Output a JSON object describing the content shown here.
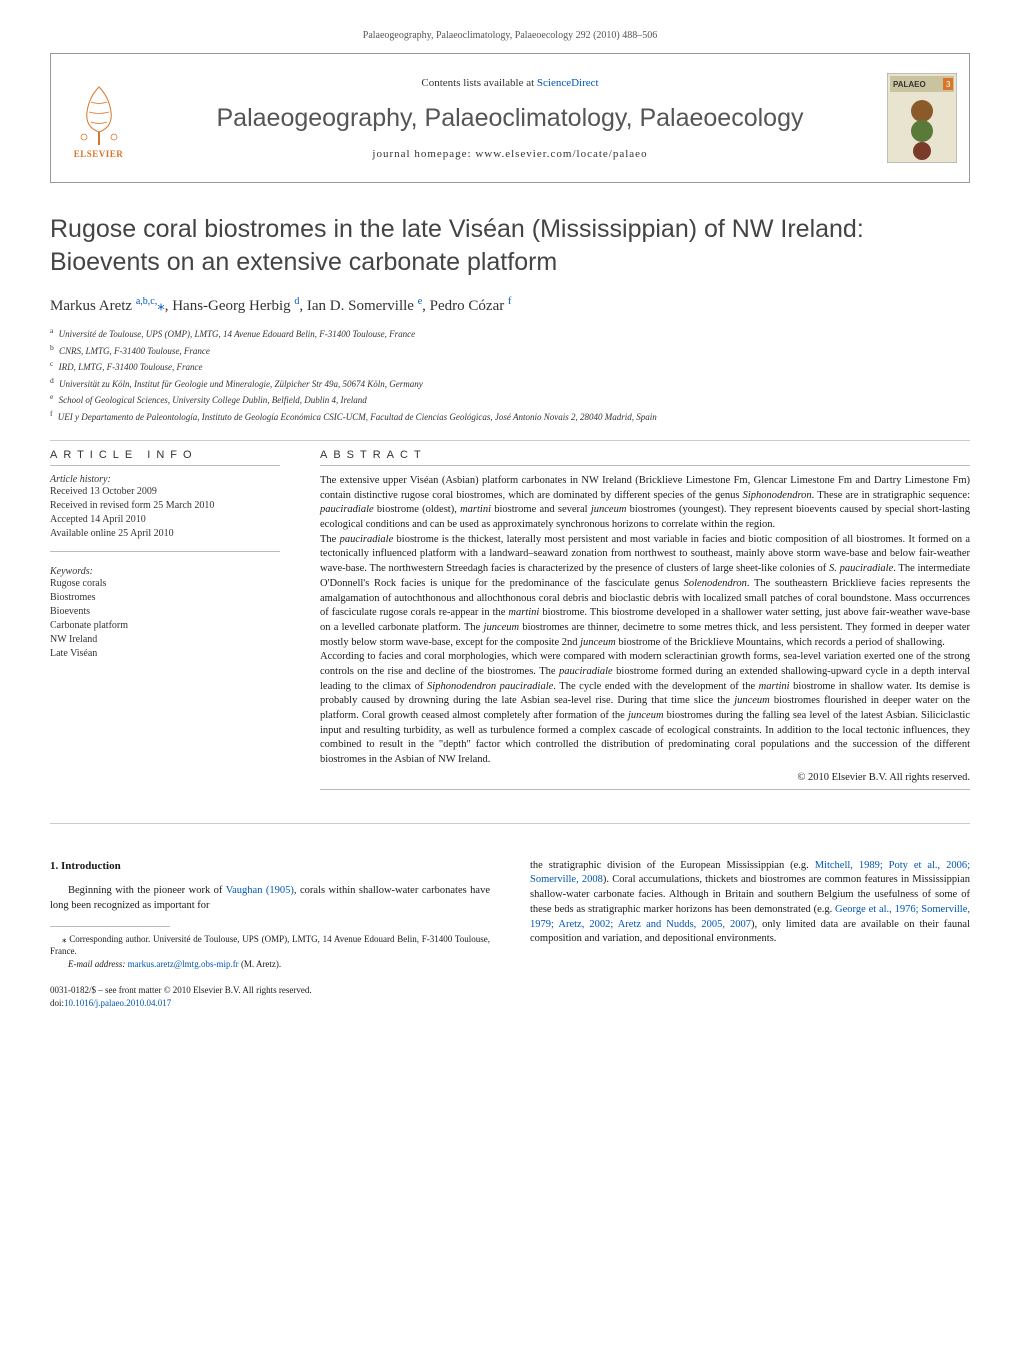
{
  "running_head": "Palaeogeography, Palaeoclimatology, Palaeoecology 292 (2010) 488–506",
  "header": {
    "contents_line_prefix": "Contents lists available at ",
    "sciencedirect": "ScienceDirect",
    "journal_name": "Palaeogeography, Palaeoclimatology, Palaeoecology",
    "homepage_label": "journal homepage: www.elsevier.com/locate/palaeo",
    "elsevier_label": "ELSEVIER",
    "palaeo_cover_label": "PALAEO",
    "palaeo_cover_num": "3"
  },
  "title": "Rugose coral biostromes in the late Viséan (Mississippian) of NW Ireland: Bioevents on an extensive carbonate platform",
  "authors_html": "Markus Aretz <sup>a,b,c,</sup><span class='star'>⁎</span>, Hans-Georg Herbig <sup>d</sup>, Ian D. Somerville <sup>e</sup>, Pedro Cózar <sup>f</sup>",
  "affiliations": [
    {
      "sup": "a",
      "text": "Université de Toulouse, UPS (OMP), LMTG, 14 Avenue Edouard Belin, F-31400 Toulouse, France"
    },
    {
      "sup": "b",
      "text": "CNRS, LMTG, F-31400 Toulouse, France"
    },
    {
      "sup": "c",
      "text": "IRD, LMTG, F-31400 Toulouse, France"
    },
    {
      "sup": "d",
      "text": "Universität zu Köln, Institut für Geologie und Mineralogie, Zülpicher Str 49a, 50674 Köln, Germany"
    },
    {
      "sup": "e",
      "text": "School of Geological Sciences, University College Dublin, Belfield, Dublin 4, Ireland"
    },
    {
      "sup": "f",
      "text": "UEI y Departamento de Paleontología, Instituto de Geología Económica CSIC-UCM, Facultad de Ciencias Geológicas, José Antonio Novais 2, 28040 Madrid, Spain"
    }
  ],
  "article_info_heading": "ARTICLE INFO",
  "abstract_heading": "ABSTRACT",
  "history": {
    "label": "Article history:",
    "lines": [
      "Received 13 October 2009",
      "Received in revised form 25 March 2010",
      "Accepted 14 April 2010",
      "Available online 25 April 2010"
    ]
  },
  "keywords": {
    "label": "Keywords:",
    "items": [
      "Rugose corals",
      "Biostromes",
      "Bioevents",
      "Carbonate platform",
      "NW Ireland",
      "Late Viséan"
    ]
  },
  "abstract": {
    "p1": "The extensive upper Viséan (Asbian) platform carbonates in NW Ireland (Bricklieve Limestone Fm, Glencar Limestone Fm and Dartry Limestone Fm) contain distinctive rugose coral biostromes, which are dominated by different species of the genus <span class='it'>Siphonodendron</span>. These are in stratigraphic sequence: <span class='it'>pauciradiale</span> biostrome (oldest), <span class='it'>martini</span> biostrome and several <span class='it'>junceum</span> biostromes (youngest). They represent bioevents caused by special short-lasting ecological conditions and can be used as approximately synchronous horizons to correlate within the region.",
    "p2": "The <span class='it'>pauciradiale</span> biostrome is the thickest, laterally most persistent and most variable in facies and biotic composition of all biostromes. It formed on a tectonically influenced platform with a landward–seaward zonation from northwest to southeast, mainly above storm wave-base and below fair-weather wave-base. The northwestern Streedagh facies is characterized by the presence of clusters of large sheet-like colonies of <span class='it'>S. pauciradiale</span>. The intermediate O'Donnell's Rock facies is unique for the predominance of the fasciculate genus <span class='it'>Solenodendron</span>. The southeastern Bricklieve facies represents the amalgamation of autochthonous and allochthonous coral debris and bioclastic debris with localized small patches of coral boundstone. Mass occurrences of fasciculate rugose corals re-appear in the <span class='it'>martini</span> biostrome. This biostrome developed in a shallower water setting, just above fair-weather wave-base on a levelled carbonate platform. The <span class='it'>junceum</span> biostromes are thinner, decimetre to some metres thick, and less persistent. They formed in deeper water mostly below storm wave-base, except for the composite 2nd <span class='it'>junceum</span> biostrome of the Bricklieve Mountains, which records a period of shallowing.",
    "p3": "According to facies and coral morphologies, which were compared with modern scleractinian growth forms, sea-level variation exerted one of the strong controls on the rise and decline of the biostromes. The <span class='it'>pauciradiale</span> biostrome formed during an extended shallowing-upward cycle in a depth interval leading to the climax of <span class='it'>Siphonodendron pauciradiale</span>. The cycle ended with the development of the <span class='it'>martini</span> biostrome in shallow water. Its demise is probably caused by drowning during the late Asbian sea-level rise. During that time slice the <span class='it'>junceum</span> biostromes flourished in deeper water on the platform. Coral growth ceased almost completely after formation of the <span class='it'>junceum</span> biostromes during the falling sea level of the latest Asbian. Siliciclastic input and resulting turbidity, as well as turbulence formed a complex cascade of ecological constraints. In addition to the local tectonic influences, they combined to result in the \"depth\" factor which controlled the distribution of predominating coral populations and the succession of the different biostromes in the Asbian of NW Ireland."
  },
  "copyright": "© 2010 Elsevier B.V. All rights reserved.",
  "intro": {
    "heading": "1. Introduction",
    "col1_html": "Beginning with the pioneer work of <span class='ref-link'>Vaughan (1905)</span>, corals within shallow-water carbonates have long been recognized as important for",
    "col2_html": "the stratigraphic division of the European Mississippian (e.g. <span class='ref-link'>Mitchell, 1989; Poty et al., 2006; Somerville, 2008</span>). Coral accumulations, thickets and biostromes are common features in Mississippian shallow-water carbonate facies. Although in Britain and southern Belgium the usefulness of some of these beds as stratigraphic marker horizons has been demonstrated (e.g. <span class='ref-link'>George et al., 1976; Somerville, 1979; Aretz, 2002; Aretz and Nudds, 2005, 2007</span>), only limited data are available on their faunal composition and variation, and depositional environments."
  },
  "corresponding": {
    "text": "⁎ Corresponding author. Université de Toulouse, UPS (OMP), LMTG, 14 Avenue Edouard Belin, F-31400 Toulouse, France.",
    "email_label": "E-mail address: ",
    "email": "markus.aretz@lmtg.obs-mip.fr",
    "email_suffix": " (M. Aretz)."
  },
  "footer": {
    "front_matter": "0031-0182/$ – see front matter © 2010 Elsevier B.V. All rights reserved.",
    "doi_prefix": "doi:",
    "doi": "10.1016/j.palaeo.2010.04.017"
  },
  "colors": {
    "link": "#0056b3",
    "elsevier_orange": "#d97528",
    "rule": "#cccccc",
    "text": "#1a1a1a",
    "muted": "#555555"
  }
}
